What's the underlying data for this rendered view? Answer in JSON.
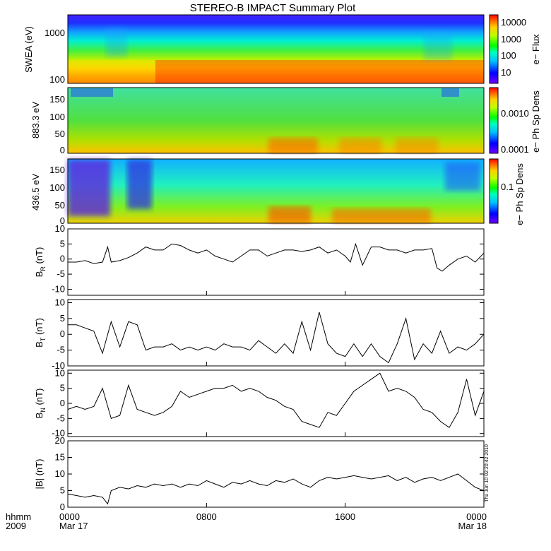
{
  "chart_data": {
    "type": "multi-panel",
    "title": "STEREO-B IMPACT Summary Plot",
    "timestamp": "Thu Jun 10 02:20:42 2010",
    "x_axis": {
      "row1_label": "hhmm",
      "row2_label": "2009",
      "ticks": [
        {
          "hours": 0,
          "top": "0000",
          "bottom": "Mar 17"
        },
        {
          "hours": 8,
          "top": "0800",
          "bottom": ""
        },
        {
          "hours": 16,
          "top": "1600",
          "bottom": ""
        },
        {
          "hours": 24,
          "top": "0000",
          "bottom": "Mar 18"
        }
      ],
      "xlim": [
        0,
        24
      ]
    },
    "spectrograms": [
      {
        "name": "swea",
        "ylabel": "SWEA (eV)",
        "ytick_labels": [
          "1000",
          "100"
        ],
        "colorbar_label": "e− Flux",
        "colorbar_ticks": [
          "10000",
          "1000",
          "100",
          "10"
        ],
        "scale": "log"
      },
      {
        "name": "pad883",
        "ylabel": "883.3 eV",
        "ytick_labels": [
          "150",
          "100",
          "50",
          "0"
        ],
        "colorbar_label": "e− Ph Sp Dens",
        "colorbar_ticks": [
          "0.0010",
          "0.0001"
        ],
        "scale": "log"
      },
      {
        "name": "pad436",
        "ylabel": "436.5 eV",
        "ytick_labels": [
          "150",
          "100",
          "50",
          "0"
        ],
        "colorbar_label": "e− Ph Sp Dens",
        "colorbar_ticks": [
          "0.1"
        ],
        "scale": "log"
      }
    ],
    "line_panels": [
      {
        "name": "BR",
        "ylabel_main": "B",
        "ylabel_sub": "R",
        "ylabel_unit": "(nT)",
        "ylim": [
          -12,
          10
        ],
        "yticks": [
          10,
          5,
          0,
          -5,
          -10
        ],
        "x": [
          0,
          0.5,
          1,
          1.5,
          2,
          2.3,
          2.5,
          3,
          3.5,
          4,
          4.5,
          5,
          5.5,
          6,
          6.5,
          7,
          7.5,
          8,
          8.5,
          9,
          9.5,
          10,
          10.5,
          11,
          11.5,
          12,
          12.5,
          13,
          13.5,
          14,
          14.5,
          15,
          15.5,
          16,
          16.3,
          16.6,
          17,
          17.5,
          18,
          18.5,
          19,
          19.5,
          20,
          20.5,
          21,
          21.3,
          21.6,
          22,
          22.5,
          23,
          23.5,
          24
        ],
        "y": [
          -1,
          -1,
          -0.5,
          -1.5,
          -1,
          4,
          -1,
          -0.5,
          0.5,
          2,
          4,
          3,
          3,
          5,
          4.5,
          3,
          2,
          3,
          1,
          0,
          -1,
          1,
          3,
          3,
          1,
          2,
          3,
          3,
          2.5,
          3,
          4,
          2,
          3,
          1,
          -1,
          5,
          -2,
          4,
          4,
          3,
          3,
          2,
          3,
          3,
          3.5,
          -3,
          -4,
          -2,
          0,
          1,
          -1,
          2
        ]
      },
      {
        "name": "BT",
        "ylabel_main": "B",
        "ylabel_sub": "T",
        "ylabel_unit": "(nT)",
        "ylim": [
          -10,
          11
        ],
        "yticks": [
          10,
          5,
          0,
          -5,
          -10
        ],
        "x": [
          0,
          0.5,
          1,
          1.5,
          2,
          2.5,
          3,
          3.5,
          4,
          4.5,
          5,
          5.5,
          6,
          6.5,
          7,
          7.5,
          8,
          8.5,
          9,
          9.5,
          10,
          10.5,
          11,
          11.5,
          12,
          12.5,
          13,
          13.5,
          14,
          14.5,
          15,
          15.5,
          16,
          16.5,
          17,
          17.5,
          18,
          18.5,
          19,
          19.5,
          20,
          20.5,
          21,
          21.5,
          22,
          22.5,
          23,
          23.5,
          24
        ],
        "y": [
          3,
          3,
          2,
          1,
          -6,
          4,
          -4,
          4,
          3,
          -5,
          -4,
          -4,
          -3,
          -5,
          -4,
          -5,
          -4,
          -5,
          -3,
          -4,
          -4,
          -5,
          -2,
          -4,
          -6,
          -3,
          -6,
          4,
          -5,
          7,
          -3,
          -6,
          -7,
          -3,
          -7,
          -3,
          -7,
          -9,
          -3,
          5,
          -8,
          -3,
          -6,
          1,
          -6,
          -4,
          -5,
          -3,
          0
        ]
      },
      {
        "name": "BN",
        "ylabel_main": "B",
        "ylabel_sub": "N",
        "ylabel_unit": "(nT)",
        "ylim": [
          -11,
          11
        ],
        "yticks": [
          10,
          5,
          0,
          -5,
          -10
        ],
        "x": [
          0,
          0.5,
          1,
          1.5,
          2,
          2.5,
          3,
          3.5,
          4,
          4.5,
          5,
          5.5,
          6,
          6.5,
          7,
          7.5,
          8,
          8.5,
          9,
          9.5,
          10,
          10.5,
          11,
          11.5,
          12,
          12.5,
          13,
          13.5,
          14,
          14.5,
          15,
          15.5,
          16,
          16.5,
          17,
          17.5,
          18,
          18.5,
          19,
          19.5,
          20,
          20.5,
          21,
          21.5,
          22,
          22.5,
          23,
          23.5,
          24
        ],
        "y": [
          -2,
          -1,
          -2,
          -1,
          5,
          -5,
          -4,
          6,
          -2,
          -3,
          -4,
          -3,
          -1,
          4,
          2,
          3,
          4,
          5,
          5,
          6,
          4,
          5,
          4,
          2,
          1,
          -1,
          -2,
          -6,
          -7,
          -8,
          -3,
          -4,
          0,
          4,
          6,
          8,
          10,
          4,
          5,
          4,
          2,
          -2,
          -3,
          -6,
          -8,
          -3,
          8,
          -4,
          4
        ]
      },
      {
        "name": "Bmag",
        "ylabel_main": "|B|",
        "ylabel_sub": "",
        "ylabel_unit": "(nT)",
        "ylim": [
          0,
          20
        ],
        "yticks": [
          20,
          15,
          10,
          5,
          0
        ],
        "x": [
          0,
          0.5,
          1,
          1.5,
          2,
          2.3,
          2.5,
          3,
          3.5,
          4,
          4.5,
          5,
          5.5,
          6,
          6.5,
          7,
          7.5,
          8,
          8.5,
          9,
          9.5,
          10,
          10.5,
          11,
          11.5,
          12,
          12.5,
          13,
          13.5,
          14,
          14.5,
          15,
          15.5,
          16,
          16.5,
          17,
          17.5,
          18,
          18.5,
          19,
          19.5,
          20,
          20.5,
          21,
          21.5,
          22,
          22.5,
          23,
          23.5,
          24
        ],
        "y": [
          4,
          3.5,
          3,
          3.5,
          3,
          1,
          5,
          6,
          5.5,
          6.5,
          6,
          7,
          6.5,
          7,
          6,
          7,
          6.5,
          8,
          7,
          6,
          7.5,
          7,
          8,
          7,
          6.5,
          8,
          7.5,
          8.5,
          7,
          6,
          8,
          9,
          8.5,
          9,
          9.5,
          9,
          8.5,
          9,
          9.5,
          8,
          9,
          7.5,
          8.5,
          9,
          8,
          9,
          10,
          8,
          6,
          5
        ]
      }
    ]
  }
}
